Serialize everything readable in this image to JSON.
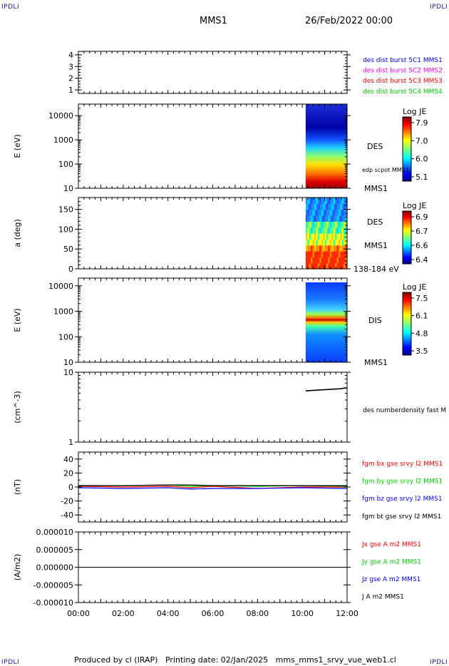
{
  "header": {
    "corner_tl": "IPDLI",
    "corner_tr": "IPDLI",
    "corner_bl": "IPDLI",
    "corner_br": "IPDLI",
    "spacecraft": "MMS1",
    "date": "26/Feb/2022 00:00"
  },
  "footer": {
    "produced_by": "Produced by cl (IRAP)",
    "printing_date": "Printing date: 02/Jan/2025",
    "filename": "mms_mms1_srvy_vue_web1.cl"
  },
  "time_axis": {
    "ticks": [
      "00:00",
      "02:00",
      "04:00",
      "06:00",
      "08:00",
      "10:00",
      "12:00"
    ],
    "range_hours": [
      0,
      12
    ],
    "data_start_hour": 10.15
  },
  "chart_data": [
    {
      "type": "scatter",
      "panel": "burst-availability",
      "ylabel": "",
      "yticks": [
        "1",
        "2",
        "3",
        "4"
      ],
      "ylim": [
        0.7,
        4.3
      ],
      "series": [
        {
          "name": "des dist burst 5C1 MMS1",
          "color": "#0000ff",
          "values": []
        },
        {
          "name": "des dist burst 5C2 MMS2",
          "color": "#ff00ff",
          "values": []
        },
        {
          "name": "des dist burst 5C3 MMS3",
          "color": "#ff0000",
          "values": []
        },
        {
          "name": "des dist burst 5C4 MMS4",
          "color": "#00cc00",
          "values": []
        }
      ]
    },
    {
      "type": "heatmap",
      "panel": "des-energy-spectrogram",
      "ylabel": "E (eV)",
      "yscale": "log",
      "ylim": [
        10,
        30000
      ],
      "yticks": [
        "10",
        "100",
        "1000",
        "10000"
      ],
      "right_labels": [
        "DES",
        "edp scpot MMS1",
        "MMS1"
      ],
      "colorbar": {
        "title": "Log JE",
        "ticks": [
          "7.9",
          "7.0",
          "6.0",
          "5.1"
        ],
        "range": [
          5.1,
          7.9
        ]
      }
    },
    {
      "type": "heatmap",
      "panel": "des-pitch-angle",
      "ylabel": "a (deg)",
      "ylim": [
        0,
        180
      ],
      "yticks": [
        "0",
        "50",
        "100",
        "150"
      ],
      "right_labels": [
        "DES",
        "MMS1",
        "138-184 eV"
      ],
      "colorbar": {
        "title": "Log JE",
        "ticks": [
          "6.9",
          "6.7",
          "6.6",
          "6.4"
        ],
        "range": [
          6.4,
          6.9
        ]
      }
    },
    {
      "type": "heatmap",
      "panel": "dis-energy-spectrogram",
      "ylabel": "E (eV)",
      "yscale": "log",
      "ylim": [
        10,
        20000
      ],
      "yticks": [
        "10",
        "100",
        "1000",
        "10000"
      ],
      "right_labels": [
        "DIS",
        "MMS1"
      ],
      "colorbar": {
        "title": "Log JE",
        "ticks": [
          "7.5",
          "6.1",
          "4.8",
          "3.5"
        ],
        "range": [
          3.5,
          7.5
        ]
      }
    },
    {
      "type": "line",
      "panel": "density",
      "ylabel": "(cm^-3)",
      "yscale": "log",
      "ylim": [
        1,
        10
      ],
      "yticks": [
        "1",
        "10"
      ],
      "series": [
        {
          "name": "des numberdensity fast M",
          "color": "#000000",
          "x": [
            10.15,
            10.5,
            10.9,
            11.3,
            11.7,
            12.0
          ],
          "values": [
            5.4,
            5.5,
            5.6,
            5.7,
            5.8,
            6.0
          ]
        }
      ]
    },
    {
      "type": "line",
      "panel": "magnetic-field",
      "ylabel": "(nT)",
      "ylim": [
        -50,
        50
      ],
      "yticks": [
        "-40",
        "-20",
        "0",
        "20",
        "40"
      ],
      "series": [
        {
          "name": "fgm bx gse srvy l2 MMS1",
          "color": "#ff0000",
          "x": [
            0,
            2,
            4,
            5,
            6,
            8,
            10,
            12
          ],
          "values": [
            1,
            0,
            1,
            -1,
            1,
            -2,
            0,
            0
          ]
        },
        {
          "name": "fgm by gse srvy l2 MMS1",
          "color": "#00cc00",
          "x": [
            0,
            2,
            4,
            5,
            6,
            8,
            10,
            12
          ],
          "values": [
            2,
            2,
            3,
            1,
            2,
            1,
            2,
            1
          ]
        },
        {
          "name": "fgm bz gse srvy l2 MMS1",
          "color": "#0000ff",
          "x": [
            0,
            2,
            4,
            5,
            6,
            8,
            10,
            12
          ],
          "values": [
            -1,
            -2,
            -1,
            -3,
            -2,
            -2,
            -1,
            -2
          ]
        },
        {
          "name": "fgm bt gse srvy l2 MMS1",
          "color": "#000000",
          "x": [
            0,
            2,
            4,
            5,
            6,
            8,
            10,
            12
          ],
          "values": [
            2,
            2,
            3,
            3,
            2,
            2,
            2,
            2
          ]
        }
      ]
    },
    {
      "type": "line",
      "panel": "current-density",
      "ylabel": "(A/m2)",
      "ylim": [
        -1e-05,
        1e-05
      ],
      "yticks": [
        "-0.000010",
        "-0.000005",
        "0.000000",
        "0.000005",
        "0.000010"
      ],
      "series": [
        {
          "name": "Jx gse A m2 MMS1",
          "color": "#ff0000",
          "x": [
            0,
            12
          ],
          "values": [
            0,
            0
          ]
        },
        {
          "name": "Jy gse A m2 MMS1",
          "color": "#00cc00",
          "x": [
            0,
            12
          ],
          "values": [
            0,
            0
          ]
        },
        {
          "name": "Jz gse A m2 MMS1",
          "color": "#0000ff",
          "x": [
            0,
            12
          ],
          "values": [
            0,
            0
          ]
        },
        {
          "name": "J A m2 MMS1",
          "color": "#000000",
          "x": [
            0,
            12
          ],
          "values": [
            0,
            0
          ]
        }
      ]
    }
  ]
}
